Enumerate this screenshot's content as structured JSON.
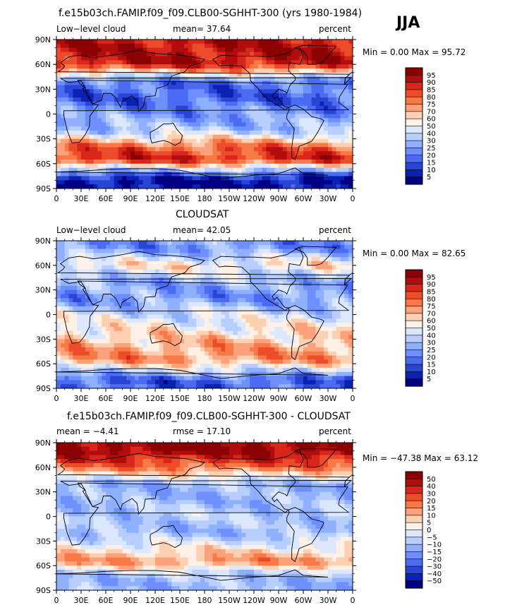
{
  "season": "JJA",
  "panels": [
    {
      "title": "f.e15b03ch.FAMIP.f09_f09.CLB00-SGHHT-300 (yrs 1980-1984)",
      "left_label": "Low−level cloud",
      "mean_text": "mean=  37.64",
      "units": "percent",
      "minmax": "Min =    0.00 Max =   95.72",
      "colorbar": {
        "labels": [
          "95",
          "90",
          "85",
          "80",
          "75",
          "70",
          "60",
          "50",
          "40",
          "30",
          "25",
          "20",
          "15",
          "10",
          "5"
        ],
        "colors": [
          "#8b0000",
          "#b20d0d",
          "#d8261a",
          "#ec4c2a",
          "#f77a46",
          "#fca17a",
          "#fdd0b1",
          "#fff1e6",
          "#dbe8ff",
          "#b7ceff",
          "#8fb0ff",
          "#6e90ff",
          "#4b6cf2",
          "#2a45d4",
          "#0b21b3",
          "#000080"
        ]
      }
    },
    {
      "title": "CLOUDSAT",
      "left_label": "Low−level cloud",
      "mean_text": "mean=  42.05",
      "units": "percent",
      "minmax": "Min =    0.00 Max =   82.65",
      "colorbar": {
        "labels": [
          "95",
          "90",
          "85",
          "80",
          "75",
          "70",
          "60",
          "50",
          "40",
          "30",
          "25",
          "20",
          "15",
          "10",
          "5"
        ],
        "colors": [
          "#8b0000",
          "#b20d0d",
          "#d8261a",
          "#ec4c2a",
          "#f77a46",
          "#fca17a",
          "#fdd0b1",
          "#fff1e6",
          "#dbe8ff",
          "#b7ceff",
          "#8fb0ff",
          "#6e90ff",
          "#4b6cf2",
          "#2a45d4",
          "#0b21b3",
          "#000080"
        ]
      }
    },
    {
      "title": "f.e15b03ch.FAMIP.f09_f09.CLB00-SGHHT-300 - CLOUDSAT",
      "left_label": "mean =  −4.41",
      "mean_text": "rmse =   17.10",
      "units": "percent",
      "minmax": "Min = −47.38 Max =   63.12",
      "colorbar": {
        "labels": [
          "50",
          "40",
          "30",
          "20",
          "15",
          "10",
          "5",
          "0",
          "−5",
          "−10",
          "−15",
          "−20",
          "−30",
          "−40",
          "−50"
        ],
        "colors": [
          "#8b0000",
          "#b20d0d",
          "#d8261a",
          "#ec4c2a",
          "#f77a46",
          "#fca17a",
          "#fdd0b1",
          "#fff1e6",
          "#dbe8ff",
          "#b7ceff",
          "#8fb0ff",
          "#6e90ff",
          "#4b6cf2",
          "#2a45d4",
          "#0b21b3",
          "#000080"
        ]
      }
    }
  ],
  "axes": {
    "lat_labels": [
      "90N",
      "60N",
      "30N",
      "0",
      "30S",
      "60S",
      "90S"
    ],
    "lon_labels": [
      "0",
      "30E",
      "60E",
      "90E",
      "120E",
      "150E",
      "180",
      "150W",
      "120W",
      "90W",
      "60W",
      "30W",
      "0"
    ]
  },
  "chart_data": [
    {
      "type": "heatmap",
      "title": "f.e15b03ch.FAMIP.f09_f09.CLB00-SGHHT-300 (yrs 1980-1984)",
      "variable": "Low-level cloud",
      "units": "percent",
      "mean": 37.64,
      "min": 0.0,
      "max": 95.72,
      "x_range": [
        0,
        360
      ],
      "y_range": [
        -90,
        90
      ],
      "zonal_profile": [
        [
          80,
          90
        ],
        [
          60,
          88
        ],
        [
          40,
          25
        ],
        [
          20,
          20
        ],
        [
          0,
          30
        ],
        [
          -20,
          40
        ],
        [
          -40,
          75
        ],
        [
          -55,
          85
        ],
        [
          -70,
          30
        ],
        [
          -80,
          5
        ]
      ]
    },
    {
      "type": "heatmap",
      "title": "CLOUDSAT",
      "variable": "Low-level cloud",
      "units": "percent",
      "mean": 42.05,
      "min": 0.0,
      "max": 82.65,
      "x_range": [
        0,
        360
      ],
      "y_range": [
        -90,
        90
      ],
      "zonal_profile": [
        [
          80,
          30
        ],
        [
          60,
          55
        ],
        [
          40,
          35
        ],
        [
          20,
          30
        ],
        [
          0,
          45
        ],
        [
          -20,
          55
        ],
        [
          -40,
          65
        ],
        [
          -55,
          68
        ],
        [
          -70,
          40
        ],
        [
          -80,
          20
        ]
      ]
    },
    {
      "type": "heatmap",
      "title": "f.e15b03ch.FAMIP.f09_f09.CLB00-SGHHT-300 - CLOUDSAT",
      "variable": "difference",
      "units": "percent",
      "mean": -4.41,
      "rmse": 17.1,
      "min": -47.38,
      "max": 63.12,
      "x_range": [
        0,
        360
      ],
      "y_range": [
        -90,
        90
      ],
      "zonal_profile": [
        [
          80,
          50
        ],
        [
          60,
          25
        ],
        [
          40,
          -15
        ],
        [
          20,
          -15
        ],
        [
          0,
          -10
        ],
        [
          -20,
          -15
        ],
        [
          -40,
          5
        ],
        [
          -55,
          20
        ],
        [
          -70,
          -10
        ],
        [
          -80,
          -15
        ]
      ]
    }
  ]
}
